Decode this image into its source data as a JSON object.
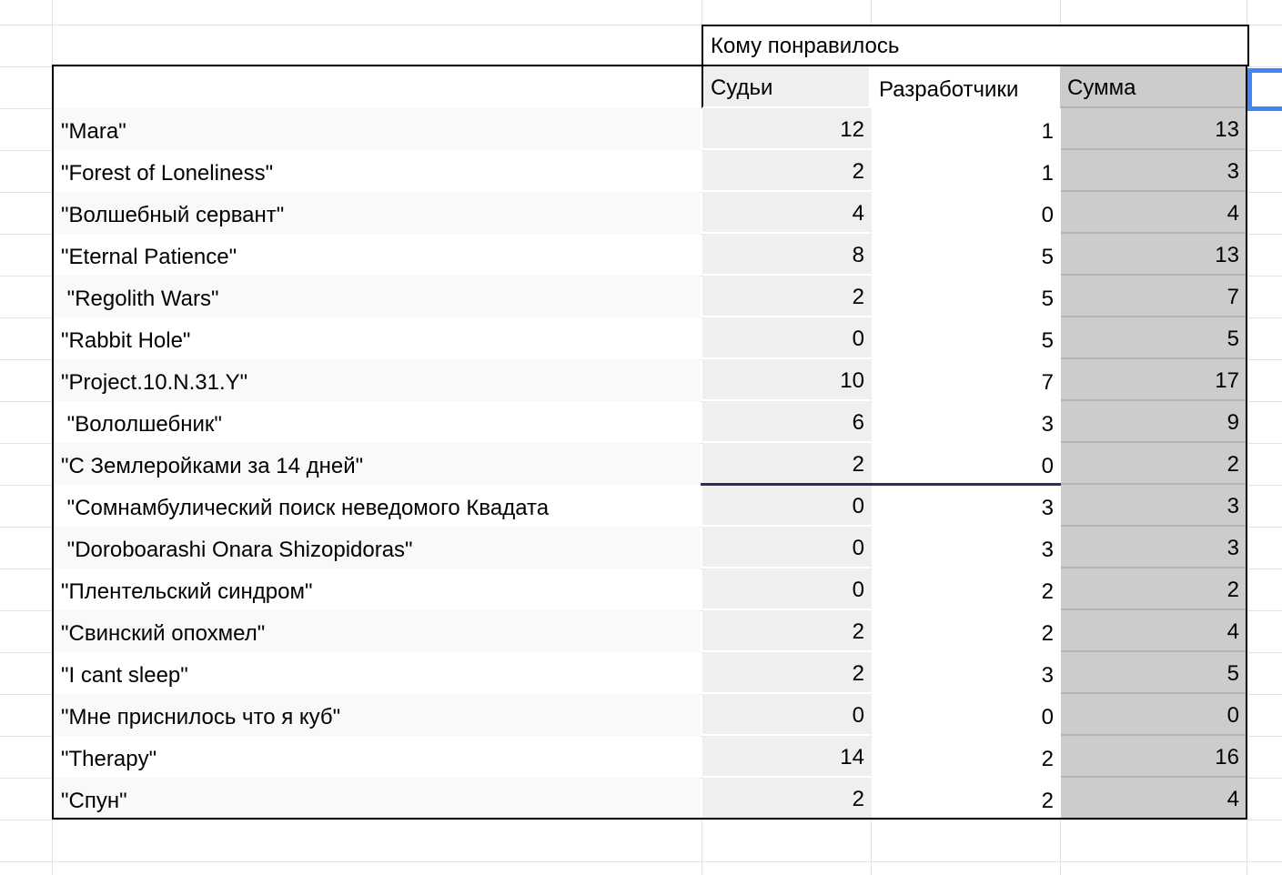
{
  "sheet": {
    "merged_header": "Кому понравилось",
    "columns": {
      "judges": "Судьи",
      "developers": "Разработчики",
      "sum": "Сумма"
    },
    "rows": [
      {
        "name": "\"Mara\"",
        "judges": "12",
        "developers": "1",
        "sum": "13"
      },
      {
        "name": "\"Forest of Loneliness\"",
        "judges": "2",
        "developers": "1",
        "sum": "3"
      },
      {
        "name": "\"Волшебный сервант\"",
        "judges": "4",
        "developers": "0",
        "sum": "4"
      },
      {
        "name": "\"Eternal Patience\"",
        "judges": "8",
        "developers": "5",
        "sum": "13"
      },
      {
        "name": " \"Regolith Wars\"",
        "judges": "2",
        "developers": "5",
        "sum": "7"
      },
      {
        "name": "\"Rabbit Hole\"",
        "judges": "0",
        "developers": "5",
        "sum": "5"
      },
      {
        "name": "\"Project.10.N.31.Y\"",
        "judges": "10",
        "developers": "7",
        "sum": "17"
      },
      {
        "name": " \"Вололшебник\"",
        "judges": "6",
        "developers": "3",
        "sum": "9"
      },
      {
        "name": "\"С Землеройками за 14 дней\"",
        "judges": "2",
        "developers": "0",
        "sum": "2"
      },
      {
        "name": " \"Сомнамбулический поиск неведомого Квадата",
        "judges": "0",
        "developers": "3",
        "sum": "3"
      },
      {
        "name": " \"Doroboarashi Onara Shizopidoras\"",
        "judges": "0",
        "developers": "3",
        "sum": "3"
      },
      {
        "name": "\"Плентельский синдром\"",
        "judges": "0",
        "developers": "2",
        "sum": "2"
      },
      {
        "name": "\"Свинский опохмел\"",
        "judges": "2",
        "developers": "2",
        "sum": "4"
      },
      {
        "name": "\"I cant sleep\"",
        "judges": "2",
        "developers": "3",
        "sum": "5"
      },
      {
        "name": "\"Мне приснилось что я куб\"",
        "judges": "0",
        "developers": "0",
        "sum": "0"
      },
      {
        "name": "\"Therapy\"",
        "judges": "14",
        "developers": "2",
        "sum": "16"
      },
      {
        "name": "\"Спун\"",
        "judges": "2",
        "developers": "2",
        "sum": "4"
      }
    ]
  },
  "colors": {
    "gridline": "#e2e2e2",
    "band": "#f8f9fb",
    "judgesFill": "#efefef",
    "sumFill": "#cccccc",
    "sumSep": "#b5b5b5",
    "tableBorder": "#000000",
    "purple": "#35285b",
    "blue": "#4285f4"
  }
}
